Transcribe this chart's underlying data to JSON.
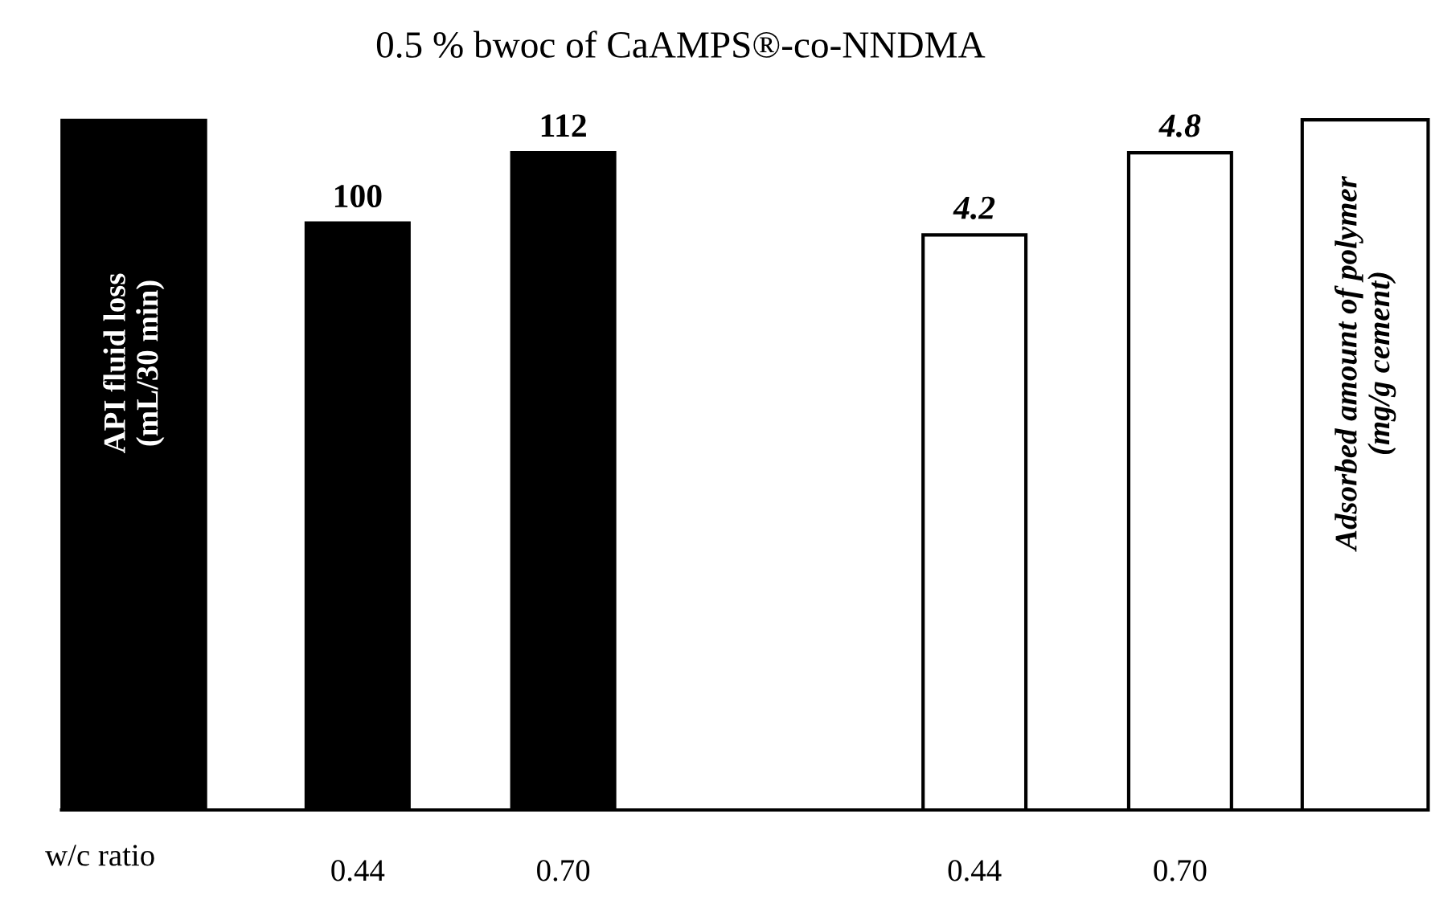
{
  "chart_data": {
    "type": "bar",
    "title": "0.5 % bwoc of CaAMPS®-co-NNDMA",
    "xlabel": "w/c ratio",
    "ylabel": "API fluid loss\n(mL/30 min)",
    "y2label": "Adsorbed amount of polymer\n(mg/g cement)",
    "categories": [
      "0.44",
      "0.70",
      null,
      "0.44",
      "0.70"
    ],
    "series": [
      {
        "color": "#000000",
        "values": [
          100,
          112,
          null,
          null,
          null
        ]
      },
      {
        "color": "#ffffff",
        "axis": "y2",
        "values": [
          null,
          null,
          null,
          4.2,
          4.8
        ]
      }
    ],
    "data_labels": true,
    "grid": false,
    "legend": false,
    "tick_labels": "x"
  }
}
